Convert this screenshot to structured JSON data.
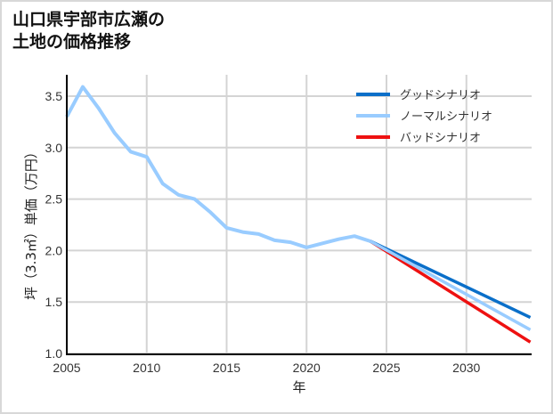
{
  "title": {
    "line1": "山口県宇部市広瀬の",
    "line2": "土地の価格推移"
  },
  "chart_data": {
    "type": "line",
    "title": "山口県宇部市広瀬の土地の価格推移",
    "xlabel": "年",
    "ylabel": "坪（3.3㎡）単価（万円）",
    "xlim": [
      2005,
      2034
    ],
    "ylim": [
      1.0,
      3.7
    ],
    "x_ticks": [
      "2005",
      "2010",
      "2015",
      "2020",
      "2025",
      "2030"
    ],
    "y_ticks": [
      "1.0",
      "1.5",
      "2.0",
      "2.5",
      "3.0",
      "3.5"
    ],
    "grid": true,
    "legend_position": "upper right",
    "history": {
      "x": [
        2005,
        2006,
        2007,
        2008,
        2009,
        2010,
        2011,
        2012,
        2013,
        2014,
        2015,
        2016,
        2017,
        2018,
        2019,
        2020,
        2021,
        2022,
        2023,
        2024
      ],
      "values": [
        3.3,
        3.59,
        3.38,
        3.14,
        2.96,
        2.91,
        2.65,
        2.54,
        2.5,
        2.37,
        2.22,
        2.18,
        2.16,
        2.1,
        2.08,
        2.03,
        2.07,
        2.11,
        2.14,
        2.09
      ]
    },
    "series": [
      {
        "name": "グッドシナリオ",
        "color": "#0a6fc9",
        "x": [
          2024,
          2034
        ],
        "values": [
          2.09,
          1.35
        ]
      },
      {
        "name": "ノーマルシナリオ",
        "color": "#99ccff",
        "x": [
          2024,
          2034
        ],
        "values": [
          2.09,
          1.23
        ]
      },
      {
        "name": "バッドシナリオ",
        "color": "#ee1111",
        "x": [
          2024,
          2034
        ],
        "values": [
          2.09,
          1.11
        ]
      }
    ]
  }
}
